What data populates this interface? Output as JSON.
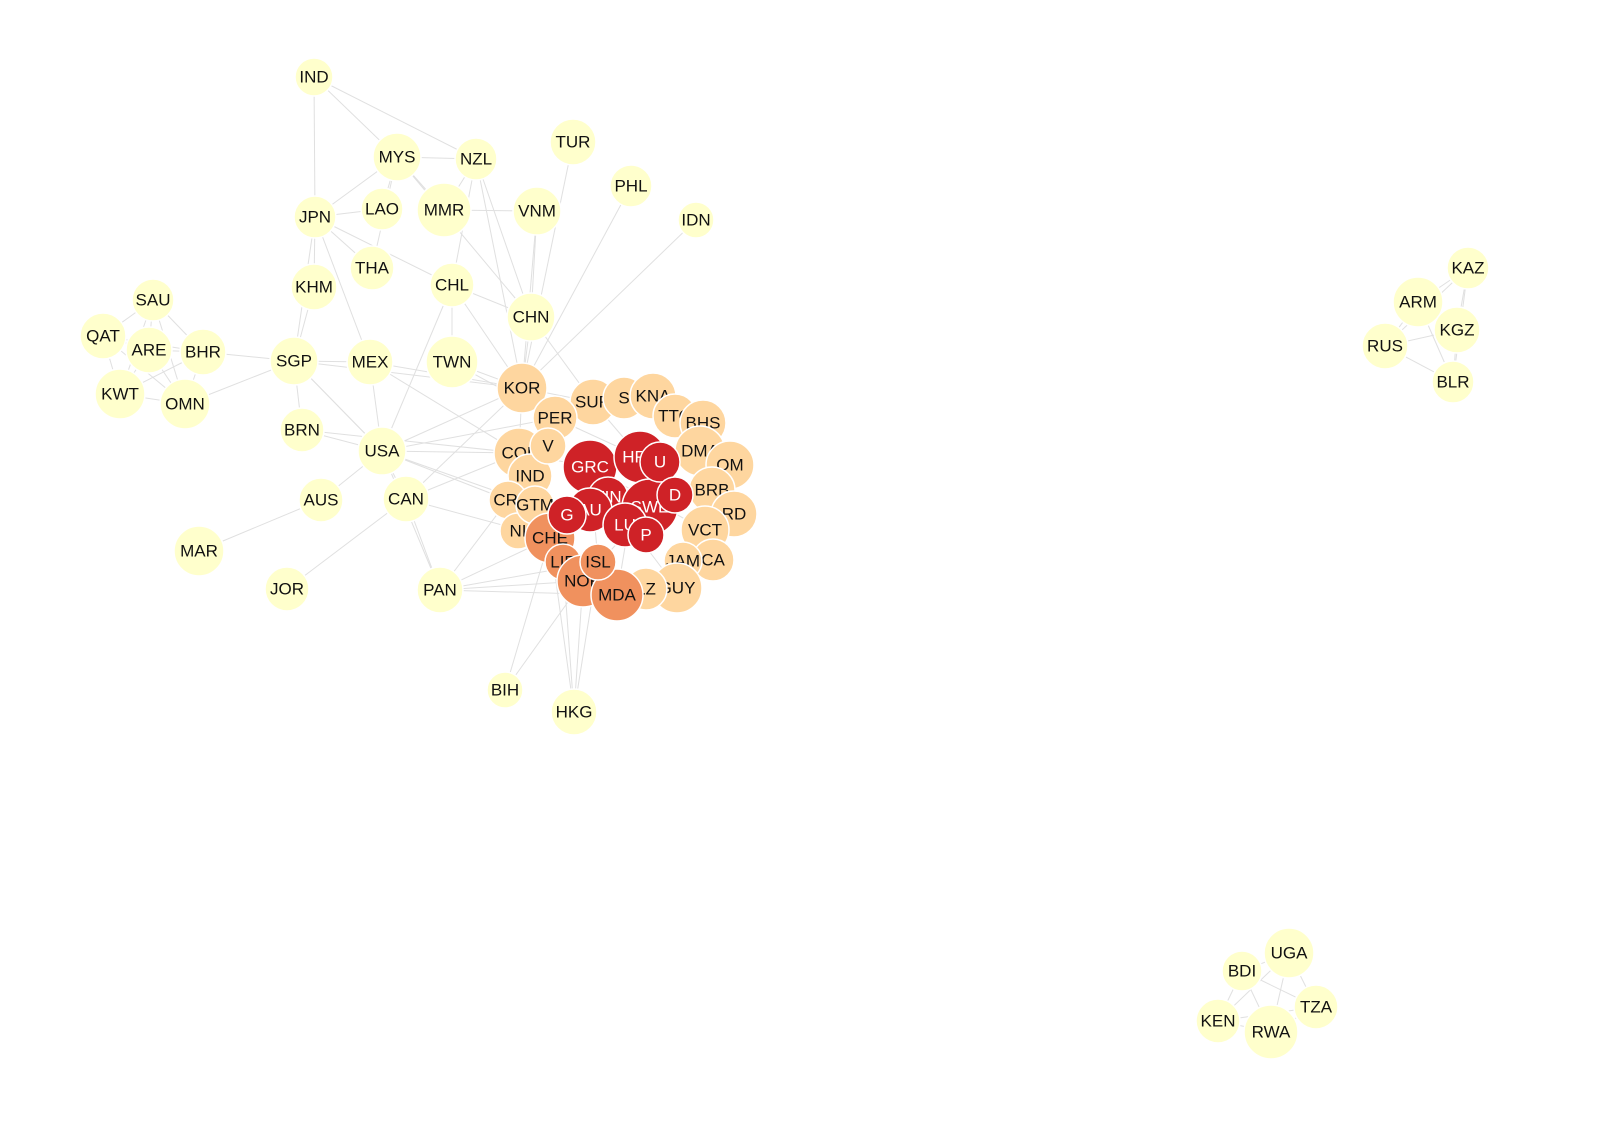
{
  "colors": {
    "level0": "#ffffcc",
    "level1": "#fed69f",
    "level2": "#f0915e",
    "level3": "#cf2227",
    "edge": "#e0e0e0",
    "label_dark": "#111111",
    "label_light": "#ffffff"
  },
  "nodes": [
    {
      "id": "IND",
      "level": 0
    },
    {
      "id": "MYS",
      "level": 0
    },
    {
      "id": "NZL",
      "level": 0
    },
    {
      "id": "TUR",
      "level": 0
    },
    {
      "id": "PHL",
      "level": 0
    },
    {
      "id": "JPN",
      "level": 0
    },
    {
      "id": "LAO",
      "level": 0
    },
    {
      "id": "MMR",
      "level": 0
    },
    {
      "id": "VNM",
      "level": 0
    },
    {
      "id": "IDN",
      "level": 0
    },
    {
      "id": "THA",
      "level": 0
    },
    {
      "id": "KHM",
      "level": 0
    },
    {
      "id": "CHL",
      "level": 0
    },
    {
      "id": "CHN",
      "level": 0
    },
    {
      "id": "SAU",
      "level": 0
    },
    {
      "id": "QAT",
      "level": 0
    },
    {
      "id": "ARE",
      "level": 0
    },
    {
      "id": "BHR",
      "level": 0
    },
    {
      "id": "SGP",
      "level": 0
    },
    {
      "id": "MEX",
      "level": 0
    },
    {
      "id": "TWN",
      "level": 0
    },
    {
      "id": "KWT",
      "level": 0
    },
    {
      "id": "OMN",
      "level": 0
    },
    {
      "id": "BRN",
      "level": 0
    },
    {
      "id": "USA",
      "level": 0
    },
    {
      "id": "AUS",
      "level": 0
    },
    {
      "id": "CAN",
      "level": 0
    },
    {
      "id": "MAR",
      "level": 0
    },
    {
      "id": "JOR",
      "level": 0
    },
    {
      "id": "PAN",
      "level": 0
    },
    {
      "id": "BIH",
      "level": 0
    },
    {
      "id": "HKG",
      "level": 0
    },
    {
      "id": "KAZ",
      "level": 0
    },
    {
      "id": "ARM",
      "level": 0
    },
    {
      "id": "KGZ",
      "level": 0
    },
    {
      "id": "RUS",
      "level": 0
    },
    {
      "id": "BLR",
      "level": 0
    },
    {
      "id": "UGA",
      "level": 0
    },
    {
      "id": "BDI",
      "level": 0
    },
    {
      "id": "TZA",
      "level": 0
    },
    {
      "id": "KEN",
      "level": 0
    },
    {
      "id": "RWA",
      "level": 0
    },
    {
      "id": "KOR",
      "level": 1
    },
    {
      "id": "SUR",
      "level": 1
    },
    {
      "id": "S",
      "level": 1
    },
    {
      "id": "KNA",
      "level": 1
    },
    {
      "id": "TTO",
      "level": 1
    },
    {
      "id": "BHS",
      "level": 1
    },
    {
      "id": "PER",
      "level": 1
    },
    {
      "id": "DMA",
      "level": 1
    },
    {
      "id": "OM",
      "level": 1
    },
    {
      "id": "COL",
      "level": 1
    },
    {
      "id": "IND",
      "level": 1
    },
    {
      "id": "BRB",
      "level": 1
    },
    {
      "id": "CRI",
      "level": 1
    },
    {
      "id": "RD",
      "level": 1
    },
    {
      "id": "VCT",
      "level": 1
    },
    {
      "id": "NI",
      "level": 1
    },
    {
      "id": "CA",
      "level": 1
    },
    {
      "id": "JAM",
      "level": 1
    },
    {
      "id": "GUY",
      "level": 1
    },
    {
      "id": "LZ",
      "level": 1
    },
    {
      "id": "GTM",
      "level": 1
    },
    {
      "id": "V",
      "level": 1
    },
    {
      "id": "CHE",
      "level": 2
    },
    {
      "id": "LIE",
      "level": 2
    },
    {
      "id": "NOR",
      "level": 2
    },
    {
      "id": "MDA",
      "level": 2
    },
    {
      "id": "ISL",
      "level": 2
    },
    {
      "id": "GRC",
      "level": 3
    },
    {
      "id": "HRV",
      "level": 3
    },
    {
      "id": "FIN",
      "level": 3
    },
    {
      "id": "SWE",
      "level": 3
    },
    {
      "id": "AU",
      "level": 3
    },
    {
      "id": "G",
      "level": 3
    },
    {
      "id": "LU",
      "level": 3
    },
    {
      "id": "P",
      "level": 3
    },
    {
      "id": "U",
      "level": 3
    },
    {
      "id": "D",
      "level": 3
    }
  ]
}
